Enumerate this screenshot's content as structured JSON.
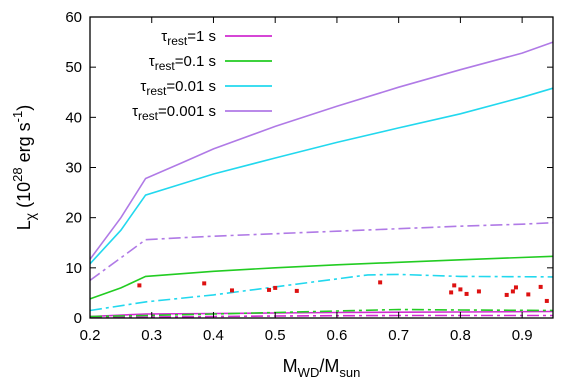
{
  "chart_data": {
    "type": "line",
    "xlabel": "M_WD/M_sun",
    "ylabel": "L_χ (10^28 erg s^-1)",
    "xlim": [
      0.2,
      0.95
    ],
    "ylim": [
      0,
      60
    ],
    "xticks": [
      0.2,
      0.3,
      0.4,
      0.5,
      0.6,
      0.7,
      0.8,
      0.9
    ],
    "yticks": [
      0,
      10,
      20,
      30,
      40,
      50,
      60
    ],
    "grid": false,
    "legend_position": "top-left",
    "legend": [
      {
        "base": "τ",
        "sub": "rest",
        "value": "=1 s",
        "color": "#d12bd1"
      },
      {
        "base": "τ",
        "sub": "rest",
        "value": "=0.1 s",
        "color": "#22cc22"
      },
      {
        "base": "τ",
        "sub": "rest",
        "value": "=0.01 s",
        "color": "#22d8ee"
      },
      {
        "base": "τ",
        "sub": "rest",
        "value": "=0.001 s",
        "color": "#b07ae6"
      }
    ],
    "series": [
      {
        "color": "#d12bd1",
        "style": "solid",
        "points": [
          [
            0.2,
            0.3
          ],
          [
            0.29,
            0.8
          ],
          [
            0.4,
            0.9
          ],
          [
            0.5,
            1.0
          ],
          [
            0.6,
            1.1
          ],
          [
            0.7,
            1.15
          ],
          [
            0.8,
            1.2
          ],
          [
            0.95,
            1.3
          ]
        ]
      },
      {
        "color": "#d12bd1",
        "style": "dashdot",
        "points": [
          [
            0.2,
            0.1
          ],
          [
            0.29,
            0.2
          ],
          [
            0.4,
            0.3
          ],
          [
            0.5,
            0.4
          ],
          [
            0.6,
            0.45
          ],
          [
            0.7,
            0.5
          ],
          [
            0.8,
            0.5
          ],
          [
            0.95,
            0.5
          ]
        ]
      },
      {
        "color": "#22cc22",
        "style": "solid",
        "points": [
          [
            0.2,
            3.8
          ],
          [
            0.25,
            6.0
          ],
          [
            0.29,
            8.3
          ],
          [
            0.4,
            9.3
          ],
          [
            0.5,
            10.0
          ],
          [
            0.6,
            10.6
          ],
          [
            0.7,
            11.1
          ],
          [
            0.8,
            11.6
          ],
          [
            0.95,
            12.3
          ]
        ]
      },
      {
        "color": "#22cc22",
        "style": "dashdot",
        "points": [
          [
            0.2,
            0.3
          ],
          [
            0.29,
            0.5
          ],
          [
            0.4,
            0.8
          ],
          [
            0.5,
            1.1
          ],
          [
            0.6,
            1.4
          ],
          [
            0.7,
            1.7
          ],
          [
            0.8,
            1.6
          ],
          [
            0.95,
            1.5
          ]
        ]
      },
      {
        "color": "#22d8ee",
        "style": "solid",
        "points": [
          [
            0.2,
            10.8
          ],
          [
            0.25,
            17.5
          ],
          [
            0.29,
            24.5
          ],
          [
            0.35,
            26.8
          ],
          [
            0.4,
            28.7
          ],
          [
            0.5,
            31.9
          ],
          [
            0.6,
            35.0
          ],
          [
            0.7,
            37.9
          ],
          [
            0.8,
            40.7
          ],
          [
            0.9,
            44.0
          ],
          [
            0.95,
            45.8
          ]
        ]
      },
      {
        "color": "#22d8ee",
        "style": "dashdot",
        "points": [
          [
            0.2,
            1.5
          ],
          [
            0.29,
            3.2
          ],
          [
            0.4,
            4.6
          ],
          [
            0.5,
            6.2
          ],
          [
            0.6,
            7.8
          ],
          [
            0.65,
            8.6
          ],
          [
            0.7,
            8.7
          ],
          [
            0.8,
            8.3
          ],
          [
            0.95,
            8.2
          ]
        ]
      },
      {
        "color": "#b07ae6",
        "style": "solid",
        "points": [
          [
            0.2,
            11.7
          ],
          [
            0.25,
            20.0
          ],
          [
            0.29,
            27.8
          ],
          [
            0.35,
            31.0
          ],
          [
            0.4,
            33.7
          ],
          [
            0.5,
            38.2
          ],
          [
            0.6,
            42.2
          ],
          [
            0.7,
            46.0
          ],
          [
            0.8,
            49.5
          ],
          [
            0.9,
            52.8
          ],
          [
            0.95,
            55.0
          ]
        ]
      },
      {
        "color": "#b07ae6",
        "style": "dashdot",
        "points": [
          [
            0.2,
            7.5
          ],
          [
            0.25,
            12.0
          ],
          [
            0.29,
            15.6
          ],
          [
            0.35,
            16.0
          ],
          [
            0.4,
            16.3
          ],
          [
            0.5,
            16.8
          ],
          [
            0.6,
            17.3
          ],
          [
            0.7,
            17.8
          ],
          [
            0.8,
            18.3
          ],
          [
            0.9,
            18.7
          ],
          [
            0.95,
            19.0
          ]
        ]
      }
    ],
    "scatter": {
      "color": "#dd1111",
      "points": [
        [
          0.28,
          6.5
        ],
        [
          0.385,
          6.9
        ],
        [
          0.43,
          5.5
        ],
        [
          0.49,
          5.6
        ],
        [
          0.5,
          6.0
        ],
        [
          0.535,
          5.4
        ],
        [
          0.67,
          7.1
        ],
        [
          0.785,
          5.1
        ],
        [
          0.79,
          6.5
        ],
        [
          0.8,
          5.7
        ],
        [
          0.81,
          4.8
        ],
        [
          0.83,
          5.3
        ],
        [
          0.875,
          4.6
        ],
        [
          0.885,
          5.3
        ],
        [
          0.89,
          6.1
        ],
        [
          0.91,
          4.7
        ],
        [
          0.93,
          6.2
        ],
        [
          0.94,
          3.4
        ]
      ]
    }
  }
}
